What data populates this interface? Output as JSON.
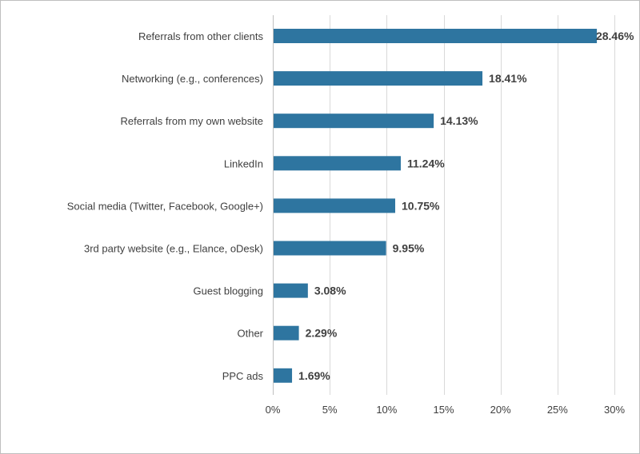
{
  "chart_data": {
    "type": "bar",
    "orientation": "horizontal",
    "categories": [
      "Referrals from other clients",
      "Networking (e.g., conferences)",
      "Referrals from my own website",
      "LinkedIn",
      "Social media (Twitter, Facebook, Google+)",
      "3rd party website (e.g., Elance, oDesk)",
      "Guest blogging",
      "Other",
      "PPC ads"
    ],
    "values": [
      28.46,
      18.41,
      14.13,
      11.24,
      10.75,
      9.95,
      3.08,
      2.29,
      1.69
    ],
    "data_labels": [
      "28.46%",
      "18.41%",
      "14.13%",
      "11.24%",
      "10.75%",
      "9.95%",
      "3.08%",
      "2.29%",
      "1.69%"
    ],
    "xlim": [
      0,
      30
    ],
    "x_ticks": [
      0,
      5,
      10,
      15,
      20,
      25,
      30
    ],
    "x_tick_labels": [
      "0%",
      "5%",
      "10%",
      "15%",
      "20%",
      "25%",
      "30%"
    ],
    "title": "",
    "xlabel": "",
    "ylabel": "",
    "grid": "vertical",
    "legend": "none",
    "bar_color": "#2e75a0"
  }
}
